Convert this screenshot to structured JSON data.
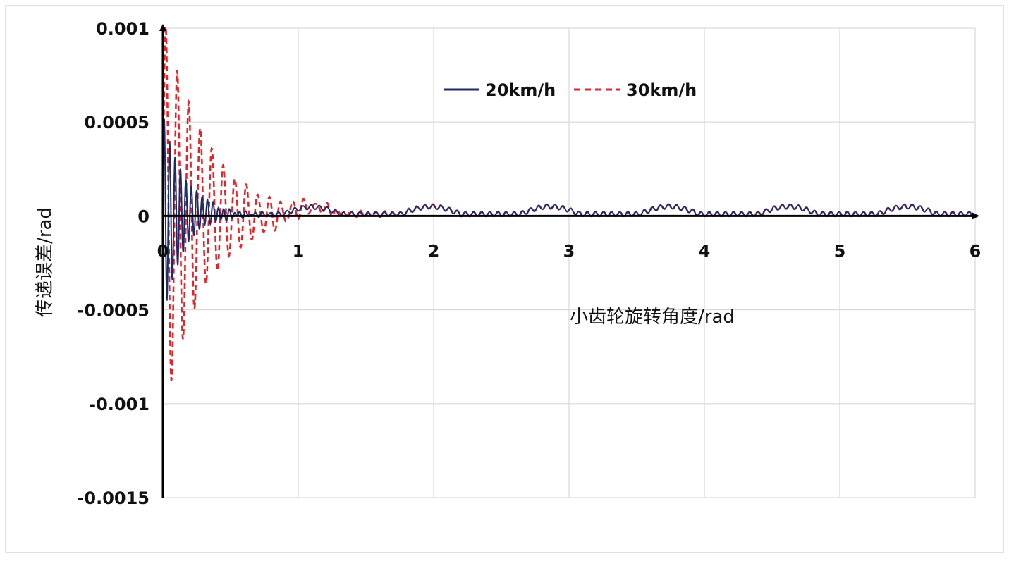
{
  "chart_data": {
    "type": "line",
    "title": "",
    "xlabel": "小齿轮旋转角度/rad",
    "ylabel": "传递误差/rad",
    "xlim": [
      0,
      6
    ],
    "ylim": [
      -0.0015,
      0.001
    ],
    "x_ticks": [
      "0",
      "1",
      "2",
      "3",
      "4",
      "5",
      "6"
    ],
    "y_ticks": [
      "0.001",
      "0.0005",
      "0",
      "-0.0005",
      "-0.001",
      "-0.0015"
    ],
    "grid": true,
    "legend_position": "top-center",
    "series": [
      {
        "name": "20km/h",
        "color": "#1f2a6b",
        "style": "solid",
        "description_points": {
          "initial_amplitude": 0.00055,
          "decay_rate": 6.5,
          "oscillation_period": 0.04,
          "steady_ripple_amplitude": 2e-05,
          "steady_dip": -4e-05,
          "steady_period": 0.88
        }
      },
      {
        "name": "30km/h",
        "color": "#e0262b",
        "style": "dashed",
        "description_points": {
          "initial_amplitude": 0.00108,
          "decay_rate": 3.2,
          "oscillation_period": 0.085,
          "steady_ripple_amplitude": 2e-05,
          "steady_dip": -4e-05,
          "steady_period": 0.88
        }
      }
    ]
  }
}
